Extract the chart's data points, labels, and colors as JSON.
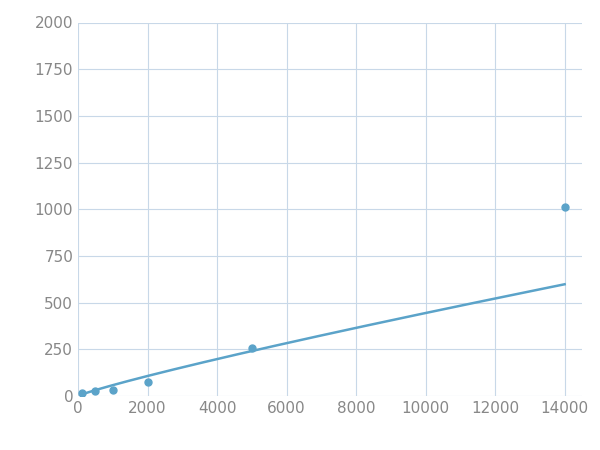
{
  "x_data": [
    125,
    500,
    1000,
    2000,
    5000,
    14000
  ],
  "y_data": [
    18,
    25,
    30,
    75,
    255,
    1010
  ],
  "line_color": "#5ba3c9",
  "marker_color": "#5ba3c9",
  "marker_size": 5,
  "xlim": [
    0,
    14500
  ],
  "ylim": [
    0,
    2000
  ],
  "xticks": [
    0,
    2000,
    4000,
    6000,
    8000,
    10000,
    12000,
    14000
  ],
  "yticks": [
    0,
    250,
    500,
    750,
    1000,
    1250,
    1500,
    1750,
    2000
  ],
  "grid_color": "#c8d8e8",
  "background_color": "#ffffff",
  "line_width": 1.8,
  "tick_label_color": "#888888",
  "tick_label_size": 11
}
